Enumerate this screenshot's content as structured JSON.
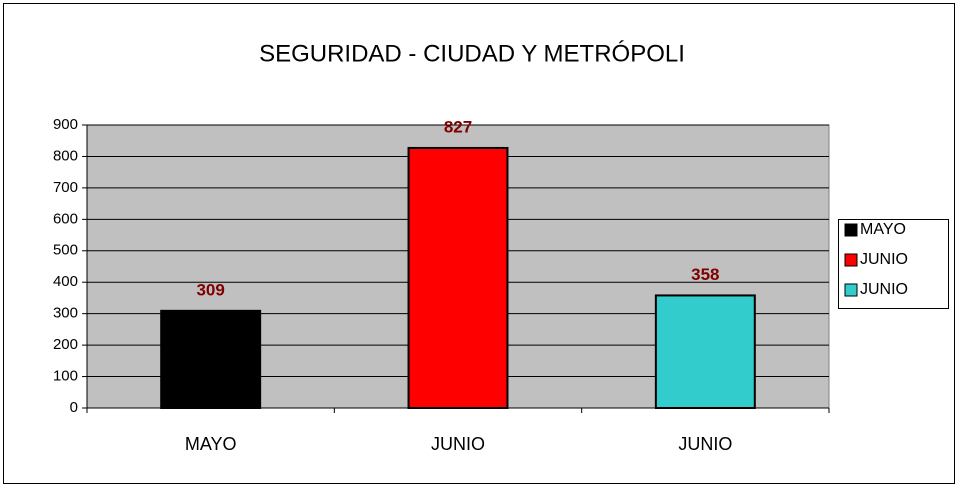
{
  "chart_data": {
    "type": "bar",
    "title": "SEGURIDAD - CIUDAD Y METRÓPOLI",
    "categories": [
      "MAYO",
      "JUNIO",
      "JUNIO"
    ],
    "values": [
      309,
      827,
      358
    ],
    "colors": [
      "#000000",
      "#ff0000",
      "#33cccc"
    ],
    "ylim": [
      0,
      900
    ],
    "yticks": [
      0,
      100,
      200,
      300,
      400,
      500,
      600,
      700,
      800,
      900
    ],
    "grid": true,
    "legend": "right"
  }
}
